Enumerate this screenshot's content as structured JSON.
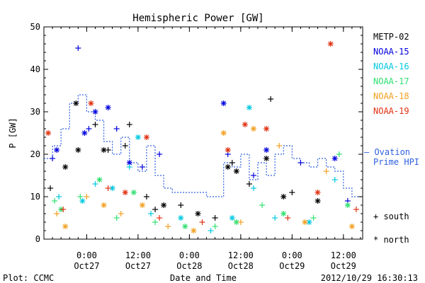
{
  "chart_data": {
    "type": "scatter",
    "title": "Hemispheric Power [GW]",
    "ylabel": "P [GW]",
    "xlabel": "Date and Time",
    "ylim": [
      0,
      50
    ],
    "xlim": [
      "2012-10-26T14:00",
      "2012-10-29T16:30"
    ],
    "y_ticks": [
      0,
      10,
      20,
      30,
      40,
      50
    ],
    "x_ticks": [
      {
        "t": "2012-10-27T00:00",
        "time": "0:00",
        "date": "Oct27"
      },
      {
        "t": "2012-10-27T12:00",
        "time": "12:00",
        "date": "Oct27"
      },
      {
        "t": "2012-10-28T00:00",
        "time": "0:00",
        "date": "Oct28"
      },
      {
        "t": "2012-10-28T12:00",
        "time": "12:00",
        "date": "Oct28"
      },
      {
        "t": "2012-10-29T00:00",
        "time": "0:00",
        "date": "Oct29"
      },
      {
        "t": "2012-10-29T12:00",
        "time": "12:00",
        "date": "Oct29"
      }
    ],
    "legend_position": "right",
    "series": [
      {
        "name": "METP-02",
        "color": "#000000",
        "points": [
          {
            "t": "2012-10-26T15:30",
            "v": 12,
            "h": "south"
          },
          {
            "t": "2012-10-26T19:00",
            "v": 17,
            "h": "north"
          },
          {
            "t": "2012-10-26T21:30",
            "v": 32,
            "h": "north"
          },
          {
            "t": "2012-10-26T22:00",
            "v": 21,
            "h": "north"
          },
          {
            "t": "2012-10-27T02:00",
            "v": 27,
            "h": "south"
          },
          {
            "t": "2012-10-27T04:00",
            "v": 21,
            "h": "north"
          },
          {
            "t": "2012-10-27T05:00",
            "v": 21,
            "h": "south"
          },
          {
            "t": "2012-10-27T09:00",
            "v": 22,
            "h": "south"
          },
          {
            "t": "2012-10-27T10:00",
            "v": 27,
            "h": "south"
          },
          {
            "t": "2012-10-27T14:00",
            "v": 10,
            "h": "south"
          },
          {
            "t": "2012-10-27T16:00",
            "v": 7,
            "h": "south"
          },
          {
            "t": "2012-10-27T18:00",
            "v": 8,
            "h": "north"
          },
          {
            "t": "2012-10-27T22:00",
            "v": 8,
            "h": "south"
          },
          {
            "t": "2012-10-28T02:00",
            "v": 6,
            "h": "north"
          },
          {
            "t": "2012-10-28T06:00",
            "v": 5,
            "h": "south"
          },
          {
            "t": "2012-10-28T09:00",
            "v": 17,
            "h": "north"
          },
          {
            "t": "2012-10-28T10:00",
            "v": 18,
            "h": "south"
          },
          {
            "t": "2012-10-28T11:00",
            "v": 16,
            "h": "north"
          },
          {
            "t": "2012-10-28T14:00",
            "v": 13,
            "h": "south"
          },
          {
            "t": "2012-10-28T18:00",
            "v": 19,
            "h": "north"
          },
          {
            "t": "2012-10-28T19:00",
            "v": 33,
            "h": "south"
          },
          {
            "t": "2012-10-28T22:00",
            "v": 10,
            "h": "north"
          },
          {
            "t": "2012-10-29T00:00",
            "v": 11,
            "h": "south"
          },
          {
            "t": "2012-10-29T06:00",
            "v": 9,
            "h": "north"
          }
        ]
      },
      {
        "name": "NOAA-15",
        "color": "#0000dd",
        "points": [
          {
            "t": "2012-10-26T16:00",
            "v": 19,
            "h": "south"
          },
          {
            "t": "2012-10-26T17:00",
            "v": 21,
            "h": "north"
          },
          {
            "t": "2012-10-26T22:00",
            "v": 45,
            "h": "south"
          },
          {
            "t": "2012-10-26T23:30",
            "v": 25,
            "h": "north"
          },
          {
            "t": "2012-10-27T00:30",
            "v": 26,
            "h": "south"
          },
          {
            "t": "2012-10-27T02:00",
            "v": 30,
            "h": "north"
          },
          {
            "t": "2012-10-27T05:00",
            "v": 31,
            "h": "north"
          },
          {
            "t": "2012-10-27T07:00",
            "v": 26,
            "h": "south"
          },
          {
            "t": "2012-10-27T10:00",
            "v": 18,
            "h": "north"
          },
          {
            "t": "2012-10-27T13:00",
            "v": 17,
            "h": "south"
          },
          {
            "t": "2012-10-27T17:00",
            "v": 20,
            "h": "south"
          },
          {
            "t": "2012-10-28T08:00",
            "v": 32,
            "h": "north"
          },
          {
            "t": "2012-10-28T09:00",
            "v": 20,
            "h": "south"
          },
          {
            "t": "2012-10-28T15:00",
            "v": 15,
            "h": "south"
          },
          {
            "t": "2012-10-28T18:00",
            "v": 21,
            "h": "north"
          },
          {
            "t": "2012-10-29T02:00",
            "v": 18,
            "h": "south"
          },
          {
            "t": "2012-10-29T10:00",
            "v": 19,
            "h": "north"
          },
          {
            "t": "2012-10-29T13:00",
            "v": 9,
            "h": "south"
          }
        ]
      },
      {
        "name": "NOAA-16",
        "color": "#00c8e0",
        "points": [
          {
            "t": "2012-10-26T17:30",
            "v": 10,
            "h": "south"
          },
          {
            "t": "2012-10-26T23:00",
            "v": 9,
            "h": "north"
          },
          {
            "t": "2012-10-27T02:00",
            "v": 13,
            "h": "south"
          },
          {
            "t": "2012-10-27T06:00",
            "v": 12,
            "h": "north"
          },
          {
            "t": "2012-10-27T10:00",
            "v": 17,
            "h": "south"
          },
          {
            "t": "2012-10-27T12:00",
            "v": 24,
            "h": "north"
          },
          {
            "t": "2012-10-27T15:00",
            "v": 6,
            "h": "south"
          },
          {
            "t": "2012-10-27T22:00",
            "v": 5,
            "h": "north"
          },
          {
            "t": "2012-10-28T05:00",
            "v": 2,
            "h": "south"
          },
          {
            "t": "2012-10-28T10:00",
            "v": 5,
            "h": "north"
          },
          {
            "t": "2012-10-28T14:00",
            "v": 31,
            "h": "north"
          },
          {
            "t": "2012-10-28T15:00",
            "v": 12,
            "h": "south"
          },
          {
            "t": "2012-10-28T20:00",
            "v": 5,
            "h": "south"
          },
          {
            "t": "2012-10-29T04:00",
            "v": 4,
            "h": "north"
          },
          {
            "t": "2012-10-29T10:00",
            "v": 14,
            "h": "south"
          }
        ]
      },
      {
        "name": "NOAA-17",
        "color": "#30e070",
        "points": [
          {
            "t": "2012-10-26T16:30",
            "v": 9,
            "h": "south"
          },
          {
            "t": "2012-10-26T18:00",
            "v": 7,
            "h": "north"
          },
          {
            "t": "2012-10-26T22:30",
            "v": 10,
            "h": "south"
          },
          {
            "t": "2012-10-27T03:00",
            "v": 14,
            "h": "north"
          },
          {
            "t": "2012-10-27T07:00",
            "v": 5,
            "h": "south"
          },
          {
            "t": "2012-10-27T11:00",
            "v": 11,
            "h": "north"
          },
          {
            "t": "2012-10-27T16:00",
            "v": 4,
            "h": "south"
          },
          {
            "t": "2012-10-27T23:00",
            "v": 3,
            "h": "north"
          },
          {
            "t": "2012-10-28T06:00",
            "v": 3,
            "h": "south"
          },
          {
            "t": "2012-10-28T11:00",
            "v": 4,
            "h": "north"
          },
          {
            "t": "2012-10-28T17:00",
            "v": 8,
            "h": "south"
          },
          {
            "t": "2012-10-28T22:00",
            "v": 6,
            "h": "north"
          },
          {
            "t": "2012-10-29T05:00",
            "v": 5,
            "h": "south"
          },
          {
            "t": "2012-10-29T11:00",
            "v": 20,
            "h": "south"
          },
          {
            "t": "2012-10-29T13:00",
            "v": 8,
            "h": "north"
          }
        ]
      },
      {
        "name": "NOAA-18",
        "color": "#f0a020",
        "points": [
          {
            "t": "2012-10-26T17:00",
            "v": 6,
            "h": "south"
          },
          {
            "t": "2012-10-26T19:00",
            "v": 3,
            "h": "north"
          },
          {
            "t": "2012-10-27T00:00",
            "v": 10,
            "h": "south"
          },
          {
            "t": "2012-10-27T04:00",
            "v": 8,
            "h": "north"
          },
          {
            "t": "2012-10-27T08:00",
            "v": 6,
            "h": "south"
          },
          {
            "t": "2012-10-27T13:00",
            "v": 8,
            "h": "north"
          },
          {
            "t": "2012-10-27T19:00",
            "v": 3,
            "h": "south"
          },
          {
            "t": "2012-10-28T01:00",
            "v": 2,
            "h": "north"
          },
          {
            "t": "2012-10-28T08:00",
            "v": 25,
            "h": "north"
          },
          {
            "t": "2012-10-28T12:00",
            "v": 4,
            "h": "south"
          },
          {
            "t": "2012-10-28T15:00",
            "v": 26,
            "h": "north"
          },
          {
            "t": "2012-10-28T21:00",
            "v": 22,
            "h": "south"
          },
          {
            "t": "2012-10-29T03:00",
            "v": 4,
            "h": "north"
          },
          {
            "t": "2012-10-29T08:00",
            "v": 16,
            "h": "south"
          },
          {
            "t": "2012-10-29T14:00",
            "v": 3,
            "h": "north"
          }
        ]
      },
      {
        "name": "NOAA-19",
        "color": "#e03010",
        "points": [
          {
            "t": "2012-10-26T15:00",
            "v": 25,
            "h": "north"
          },
          {
            "t": "2012-10-26T18:30",
            "v": 7,
            "h": "south"
          },
          {
            "t": "2012-10-27T01:00",
            "v": 32,
            "h": "north"
          },
          {
            "t": "2012-10-27T05:00",
            "v": 12,
            "h": "south"
          },
          {
            "t": "2012-10-27T09:00",
            "v": 11,
            "h": "north"
          },
          {
            "t": "2012-10-27T14:00",
            "v": 24,
            "h": "north"
          },
          {
            "t": "2012-10-27T17:00",
            "v": 5,
            "h": "south"
          },
          {
            "t": "2012-10-28T03:00",
            "v": 4,
            "h": "south"
          },
          {
            "t": "2012-10-28T09:00",
            "v": 21,
            "h": "north"
          },
          {
            "t": "2012-10-28T13:00",
            "v": 27,
            "h": "north"
          },
          {
            "t": "2012-10-28T18:00",
            "v": 26,
            "h": "north"
          },
          {
            "t": "2012-10-28T23:00",
            "v": 5,
            "h": "south"
          },
          {
            "t": "2012-10-29T06:00",
            "v": 11,
            "h": "north"
          },
          {
            "t": "2012-10-29T09:00",
            "v": 46,
            "h": "north"
          },
          {
            "t": "2012-10-29T15:00",
            "v": 7,
            "h": "south"
          }
        ]
      }
    ],
    "ovation_line": {
      "name": "Ovation Prime HPI",
      "color": "#3060e0",
      "style": "dotted-step",
      "points": [
        {
          "t": "2012-10-26T14:00",
          "v": 19
        },
        {
          "t": "2012-10-26T16:00",
          "v": 22
        },
        {
          "t": "2012-10-26T18:00",
          "v": 26
        },
        {
          "t": "2012-10-26T20:00",
          "v": 32
        },
        {
          "t": "2012-10-26T22:00",
          "v": 34
        },
        {
          "t": "2012-10-27T00:00",
          "v": 30
        },
        {
          "t": "2012-10-27T02:00",
          "v": 28
        },
        {
          "t": "2012-10-27T04:00",
          "v": 23
        },
        {
          "t": "2012-10-27T06:00",
          "v": 20
        },
        {
          "t": "2012-10-27T08:00",
          "v": 24
        },
        {
          "t": "2012-10-27T10:00",
          "v": 18
        },
        {
          "t": "2012-10-27T12:00",
          "v": 16
        },
        {
          "t": "2012-10-27T14:00",
          "v": 22
        },
        {
          "t": "2012-10-27T16:00",
          "v": 15
        },
        {
          "t": "2012-10-27T18:00",
          "v": 12
        },
        {
          "t": "2012-10-27T20:00",
          "v": 11
        },
        {
          "t": "2012-10-28T04:00",
          "v": 10
        },
        {
          "t": "2012-10-28T08:00",
          "v": 18
        },
        {
          "t": "2012-10-28T10:00",
          "v": 17
        },
        {
          "t": "2012-10-28T12:00",
          "v": 20
        },
        {
          "t": "2012-10-28T14:00",
          "v": 14
        },
        {
          "t": "2012-10-28T16:00",
          "v": 18
        },
        {
          "t": "2012-10-28T18:00",
          "v": 15
        },
        {
          "t": "2012-10-28T20:00",
          "v": 20
        },
        {
          "t": "2012-10-28T22:00",
          "v": 22
        },
        {
          "t": "2012-10-29T00:00",
          "v": 19
        },
        {
          "t": "2012-10-29T02:00",
          "v": 18
        },
        {
          "t": "2012-10-29T04:00",
          "v": 17
        },
        {
          "t": "2012-10-29T06:00",
          "v": 19
        },
        {
          "t": "2012-10-29T08:00",
          "v": 17
        },
        {
          "t": "2012-10-29T10:00",
          "v": 16
        },
        {
          "t": "2012-10-29T12:00",
          "v": 12
        },
        {
          "t": "2012-10-29T14:00",
          "v": 10
        },
        {
          "t": "2012-10-29T16:30",
          "v": 10
        }
      ]
    },
    "symbol_legend": {
      "south": "+ south",
      "north": "* north"
    }
  },
  "footer": {
    "plot_source": "Plot: CCMC",
    "timestamp": "2012/10/29 16:30:13"
  }
}
